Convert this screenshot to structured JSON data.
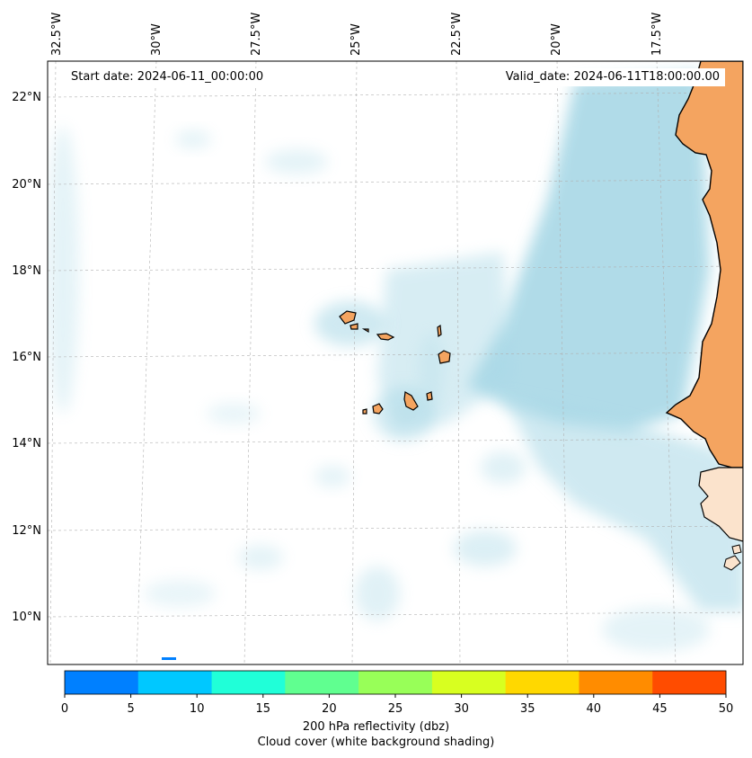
{
  "header": {
    "start_date": "Start date: 2024-06-11_00:00:00",
    "valid_date": "Valid_date: 2024-06-11T18:00:00.00"
  },
  "map": {
    "lon_labels": [
      "32.5°W",
      "30°W",
      "27.5°W",
      "25°W",
      "22.5°W",
      "20°W",
      "17.5°W"
    ],
    "lat_labels": [
      "22°N",
      "20°N",
      "18°N",
      "16°N",
      "14°N",
      "12°N",
      "10°N"
    ],
    "colors": {
      "ocean": "#ffffff",
      "cloud": "#a8d8e6",
      "land": "#f4a460",
      "coast": "#000000"
    }
  },
  "colorbar": {
    "ticks": [
      "0",
      "5",
      "10",
      "15",
      "20",
      "25",
      "30",
      "35",
      "40",
      "45",
      "50"
    ],
    "colors": [
      "#0080ff",
      "#00c8ff",
      "#20ffd8",
      "#60ff90",
      "#98ff58",
      "#d8ff20",
      "#ffd800",
      "#ff8c00",
      "#ff4c00"
    ],
    "label_line1": "200 hPa reflectivity (dbz)",
    "label_line2": "Cloud cover (white background shading)"
  }
}
